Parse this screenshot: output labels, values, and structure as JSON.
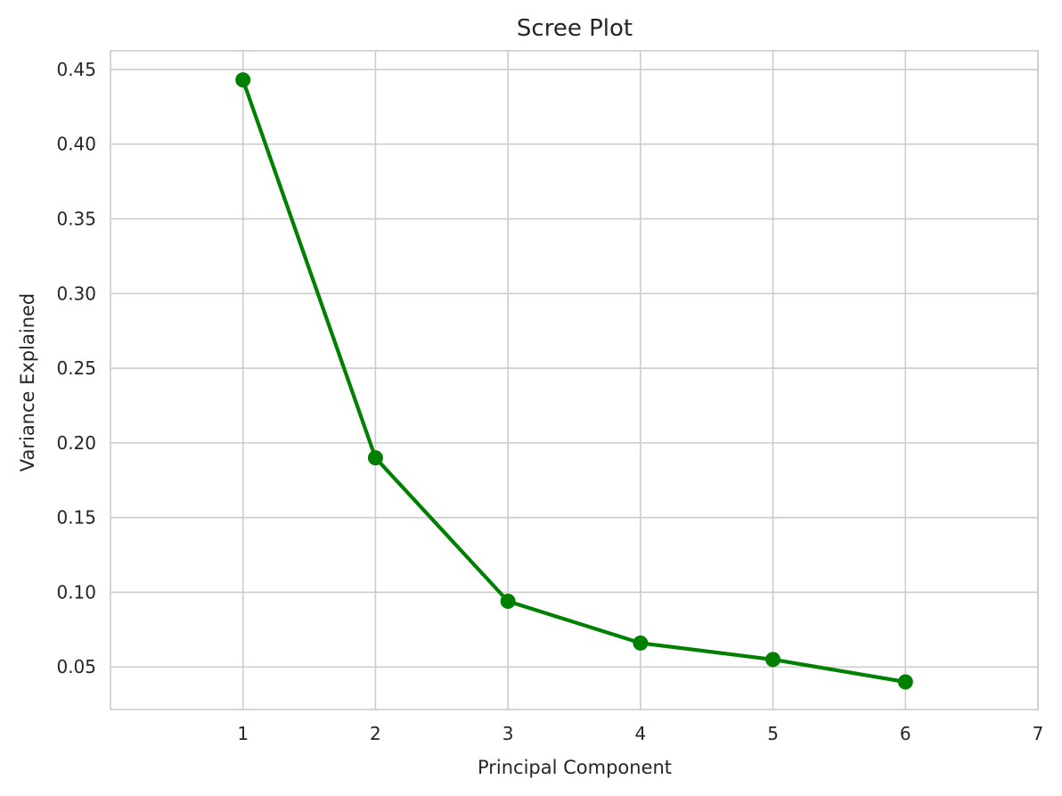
{
  "chart_data": {
    "type": "line",
    "title": "Scree Plot",
    "xlabel": "Principal Component",
    "ylabel": "Variance Explained",
    "x": [
      1,
      2,
      3,
      4,
      5,
      6
    ],
    "series": [
      {
        "values": [
          0.443,
          0.19,
          0.094,
          0.066,
          0.055,
          0.04
        ],
        "color": "#008000",
        "marker": "circle"
      }
    ],
    "xlim": [
      0,
      7
    ],
    "ylim": [
      0.0215,
      0.4625
    ],
    "xticks": [
      1,
      2,
      3,
      4,
      5,
      6,
      7
    ],
    "xtick_labels": [
      "1",
      "2",
      "3",
      "4",
      "5",
      "6",
      "7"
    ],
    "yticks": [
      0.05,
      0.1,
      0.15,
      0.2,
      0.25,
      0.3,
      0.35,
      0.4,
      0.45
    ],
    "ytick_labels": [
      "0.05",
      "0.10",
      "0.15",
      "0.20",
      "0.25",
      "0.30",
      "0.35",
      "0.40",
      "0.45"
    ],
    "grid": true,
    "legend": "none",
    "colors": {
      "line": "#008000",
      "grid": "#cccccc",
      "frame": "#cccccc",
      "text": "#262626"
    }
  }
}
